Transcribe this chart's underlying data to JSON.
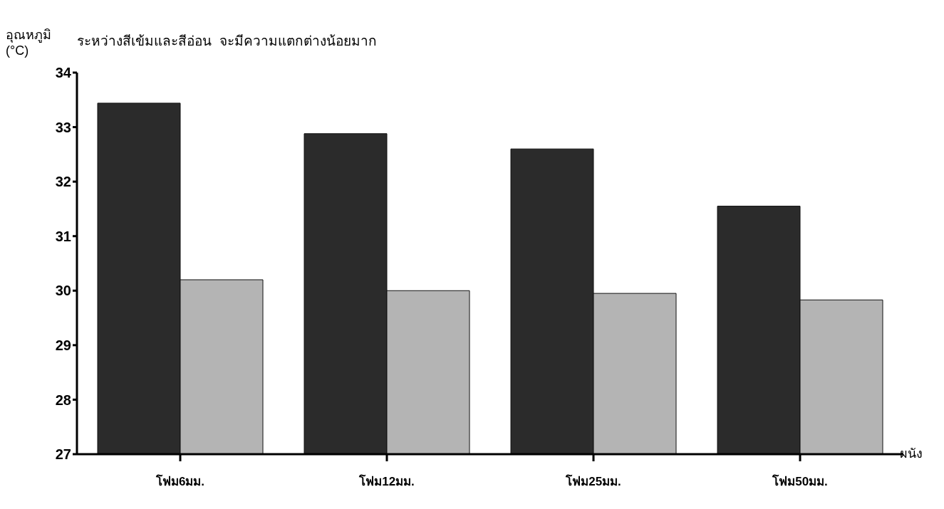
{
  "chart_data": {
    "type": "bar",
    "ylabel": "อุณหภูมิ (°C)",
    "xlabel": "ผนัง",
    "annotations": [
      "ระหว่างสีเข้มและสีอ่อน  จะมีความแตกต่างน้อยมาก"
    ],
    "categories": [
      "โฟม6มม.",
      "โฟม12มม.",
      "โฟม25มม.",
      "โฟม50มม."
    ],
    "series": [
      {
        "color": "#2b2b2b",
        "values": [
          33.44,
          32.88,
          32.6,
          31.55
        ]
      },
      {
        "color": "#b4b4b4",
        "values": [
          30.2,
          30.0,
          29.95,
          29.83
        ]
      }
    ],
    "ylim": [
      27,
      34
    ],
    "yticks": [
      27,
      28,
      29,
      30,
      31,
      32,
      33,
      34
    ],
    "grid": false,
    "legend": false
  }
}
